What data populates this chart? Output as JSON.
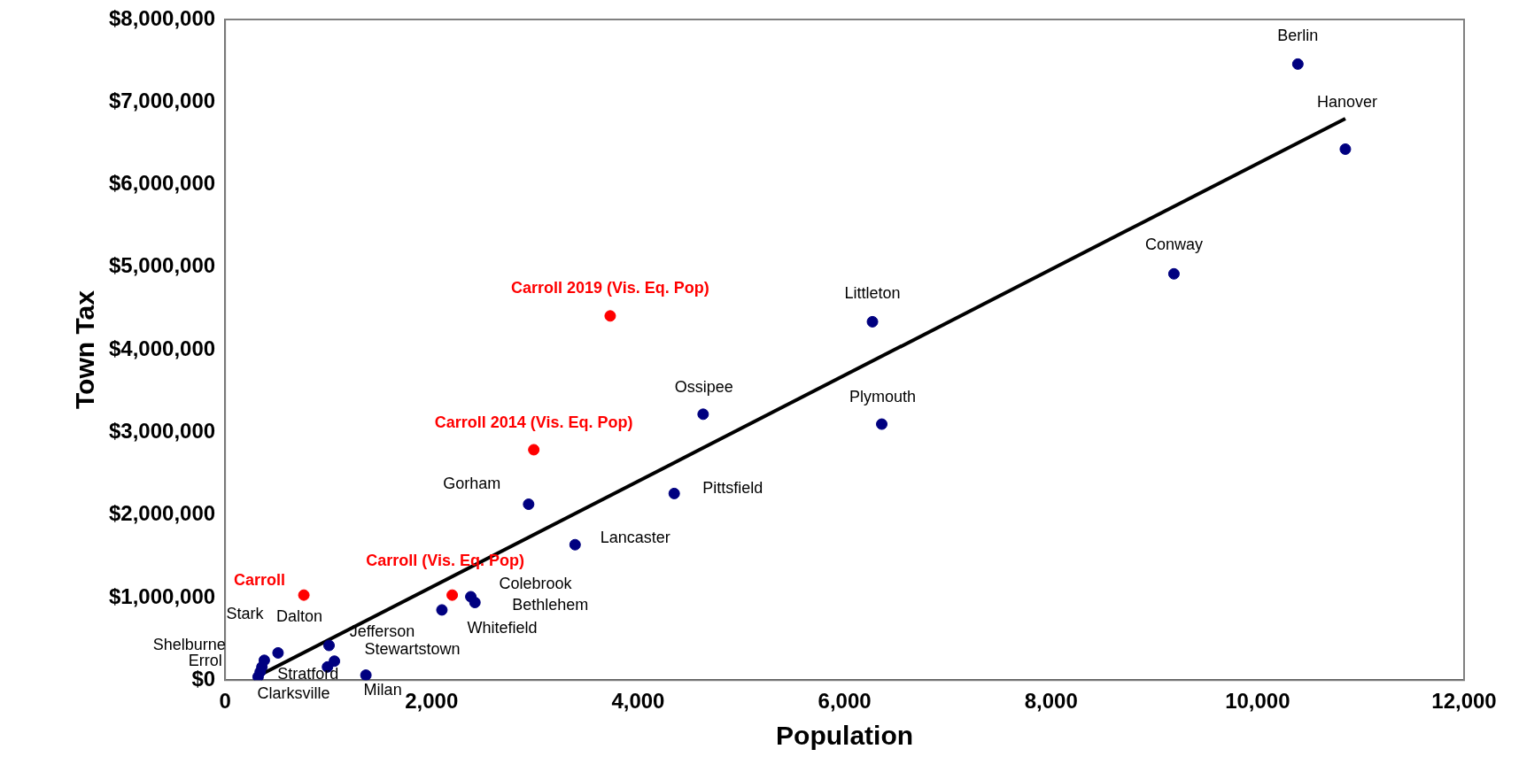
{
  "chart_data": {
    "type": "scatter",
    "xlabel": "Population",
    "ylabel": "Town Tax",
    "marker": "circle",
    "legend": false,
    "grid": false,
    "xlim": [
      0,
      12000
    ],
    "ylim": [
      0,
      8000000
    ],
    "xticks": [
      {
        "value": 0,
        "label": "0"
      },
      {
        "value": 2000,
        "label": "2,000"
      },
      {
        "value": 4000,
        "label": "4,000"
      },
      {
        "value": 6000,
        "label": "6,000"
      },
      {
        "value": 8000,
        "label": "8,000"
      },
      {
        "value": 10000,
        "label": "10,000"
      },
      {
        "value": 12000,
        "label": "12,000"
      }
    ],
    "yticks": [
      {
        "value": 0,
        "label": "$0"
      },
      {
        "value": 1000000,
        "label": "$1,000,000"
      },
      {
        "value": 2000000,
        "label": "$2,000,000"
      },
      {
        "value": 3000000,
        "label": "$3,000,000"
      },
      {
        "value": 4000000,
        "label": "$4,000,000"
      },
      {
        "value": 5000000,
        "label": "$5,000,000"
      },
      {
        "value": 6000000,
        "label": "$6,000,000"
      },
      {
        "value": 7000000,
        "label": "$7,000,000"
      },
      {
        "value": 8000000,
        "label": "$8,000,000"
      }
    ],
    "series": [
      {
        "color": "#000080",
        "x": [
          10390,
          10850,
          9190,
          6270,
          6360,
          4630,
          4350,
          2940,
          3390,
          2380,
          2420,
          2100,
          380,
          513,
          357,
          340,
          320,
          1007,
          1059,
          992,
          1364
        ],
        "values": [
          7460000,
          6430000,
          4920000,
          4340000,
          3100000,
          3220000,
          2260000,
          2130000,
          1640000,
          1010000,
          940000,
          850000,
          240000,
          330000,
          160000,
          100000,
          40000,
          420000,
          230000,
          160000,
          60000
        ]
      },
      {
        "color": "#ff0000",
        "x": [
          3730,
          2990,
          2200,
          763
        ],
        "values": [
          4410000,
          2790000,
          1030000,
          1030000
        ]
      },
      {
        "type": "line",
        "marker": "none",
        "color": "#000000",
        "x": [
          320,
          10850
        ],
        "values": [
          50000,
          6800000
        ]
      }
    ],
    "annotations": [
      {
        "text": "Berlin",
        "x": 10390,
        "y": 7460000
      },
      {
        "text": "Hanover",
        "x": 10850,
        "y": 6430000
      },
      {
        "text": "Conway",
        "x": 9190,
        "y": 4920000
      },
      {
        "text": "Littleton",
        "x": 6270,
        "y": 4340000
      },
      {
        "text": "Plymouth",
        "x": 6360,
        "y": 3100000
      },
      {
        "text": "Ossipee",
        "x": 4630,
        "y": 3220000
      },
      {
        "text": "Pittsfield",
        "x": 4350,
        "y": 2260000
      },
      {
        "text": "Gorham",
        "x": 2940,
        "y": 2130000
      },
      {
        "text": "Lancaster",
        "x": 3390,
        "y": 1640000
      },
      {
        "text": "Colebrook",
        "x": 2380,
        "y": 1010000
      },
      {
        "text": "Bethlehem",
        "x": 2420,
        "y": 940000
      },
      {
        "text": "Whitefield",
        "x": 2100,
        "y": 850000
      },
      {
        "text": "Stark",
        "x": 380,
        "y": 240000
      },
      {
        "text": "Dalton",
        "x": 513,
        "y": 330000
      },
      {
        "text": "Shelburne",
        "x": 357,
        "y": 160000
      },
      {
        "text": "Errol",
        "x": 340,
        "y": 100000
      },
      {
        "text": "Clarksville",
        "x": 320,
        "y": 40000
      },
      {
        "text": "Jefferson",
        "x": 1007,
        "y": 420000
      },
      {
        "text": "Stewartstown",
        "x": 1059,
        "y": 230000
      },
      {
        "text": "Stratford",
        "x": 992,
        "y": 160000
      },
      {
        "text": "Milan",
        "x": 1364,
        "y": 60000
      },
      {
        "text": "Carroll 2019 (Vis. Eq. Pop)",
        "x": 3730,
        "y": 4410000
      },
      {
        "text": "Carroll 2014 (Vis. Eq. Pop)",
        "x": 2990,
        "y": 2790000
      },
      {
        "text": "Carroll (Vis. Eq. Pop)",
        "x": 2200,
        "y": 1030000
      },
      {
        "text": "Carroll",
        "x": 763,
        "y": 1030000
      }
    ]
  }
}
